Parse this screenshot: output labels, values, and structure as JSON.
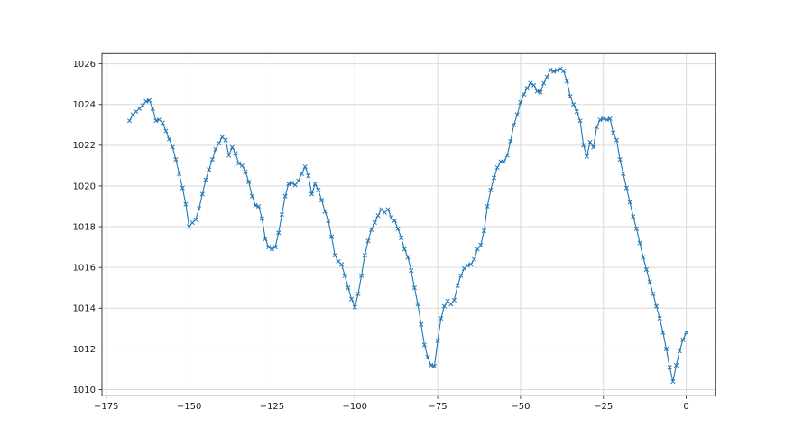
{
  "figure": {
    "background_color": "#ffffff",
    "title": ""
  },
  "chart_data": {
    "type": "line",
    "title": "",
    "xlabel": "",
    "ylabel": "",
    "grid": true,
    "legend": "none",
    "line_color": "#1f77b4",
    "marker": "x",
    "grid_color": "#d9d9d9",
    "spine_color": "#3a3a3a",
    "tick_label_color": "#1a1a1a",
    "xlim": [
      -176.3,
      8.75
    ],
    "ylim": [
      1009.7,
      1026.5
    ],
    "xticks": [
      -175,
      -150,
      -125,
      -100,
      -75,
      -50,
      -25,
      0
    ],
    "xtick_labels": [
      "−175",
      "−150",
      "−125",
      "−100",
      "−75",
      "−50",
      "−25",
      "0"
    ],
    "yticks": [
      1010,
      1012,
      1014,
      1016,
      1018,
      1020,
      1022,
      1024,
      1026
    ],
    "ytick_labels": [
      "1010",
      "1012",
      "1014",
      "1016",
      "1018",
      "1020",
      "1022",
      "1024",
      "1026"
    ],
    "x": [
      -168,
      -167,
      -166,
      -165,
      -164,
      -163,
      -162,
      -161,
      -160,
      -159,
      -158,
      -157,
      -156,
      -155,
      -154,
      -153,
      -152,
      -151,
      -150,
      -149,
      -148,
      -147,
      -146,
      -145,
      -144,
      -143,
      -142,
      -141,
      -140,
      -139,
      -138,
      -137,
      -136,
      -135,
      -134,
      -133,
      -132,
      -131,
      -130,
      -129,
      -128,
      -127,
      -126,
      -125,
      -124,
      -123,
      -122,
      -121,
      -120,
      -119,
      -118,
      -117,
      -116,
      -115,
      -114,
      -113,
      -112,
      -111,
      -110,
      -109,
      -108,
      -107,
      -106,
      -105,
      -104,
      -103,
      -102,
      -101,
      -100,
      -99,
      -98,
      -97,
      -96,
      -95,
      -94,
      -93,
      -92,
      -91,
      -90,
      -89,
      -88,
      -87,
      -86,
      -85,
      -84,
      -83,
      -82,
      -81,
      -80,
      -79,
      -78,
      -77,
      -76,
      -75,
      -74,
      -73,
      -72,
      -71,
      -70,
      -69,
      -68,
      -67,
      -66,
      -65,
      -64,
      -63,
      -62,
      -61,
      -60,
      -59,
      -58,
      -57,
      -56,
      -55,
      -54,
      -53,
      -52,
      -51,
      -50,
      -49,
      -48,
      -47,
      -46,
      -45,
      -44,
      -43,
      -42,
      -41,
      -40,
      -39,
      -38,
      -37,
      -36,
      -35,
      -34,
      -33,
      -32,
      -31,
      -30,
      -29,
      -28,
      -27,
      -26,
      -25,
      -24,
      -23,
      -22,
      -21,
      -20,
      -19,
      -18,
      -17,
      -16,
      -15,
      -14,
      -13,
      -12,
      -11,
      -10,
      -9,
      -8,
      -7,
      -6,
      -5,
      -4,
      -3,
      -2,
      -1,
      0
    ],
    "y": [
      1023.2,
      1023.5,
      1023.65,
      1023.8,
      1023.95,
      1024.15,
      1024.2,
      1023.8,
      1023.2,
      1023.25,
      1023.1,
      1022.7,
      1022.3,
      1021.9,
      1021.3,
      1020.6,
      1019.9,
      1019.1,
      1018.0,
      1018.2,
      1018.35,
      1018.9,
      1019.6,
      1020.3,
      1020.8,
      1021.3,
      1021.8,
      1022.1,
      1022.4,
      1022.25,
      1021.5,
      1021.9,
      1021.6,
      1021.1,
      1021.0,
      1020.7,
      1020.2,
      1019.5,
      1019.05,
      1019.0,
      1018.4,
      1017.4,
      1017.0,
      1016.9,
      1017.0,
      1017.7,
      1018.6,
      1019.5,
      1020.1,
      1020.15,
      1020.05,
      1020.25,
      1020.6,
      1020.95,
      1020.5,
      1019.6,
      1020.1,
      1019.8,
      1019.3,
      1018.75,
      1018.3,
      1017.5,
      1016.6,
      1016.3,
      1016.15,
      1015.6,
      1015.0,
      1014.45,
      1014.05,
      1014.7,
      1015.6,
      1016.6,
      1017.3,
      1017.85,
      1018.2,
      1018.55,
      1018.85,
      1018.7,
      1018.85,
      1018.45,
      1018.3,
      1017.9,
      1017.45,
      1016.9,
      1016.5,
      1015.85,
      1015.0,
      1014.2,
      1013.2,
      1012.2,
      1011.6,
      1011.2,
      1011.15,
      1012.4,
      1013.5,
      1014.1,
      1014.35,
      1014.2,
      1014.4,
      1015.1,
      1015.6,
      1015.95,
      1016.1,
      1016.15,
      1016.4,
      1016.9,
      1017.1,
      1017.8,
      1019.0,
      1019.8,
      1020.4,
      1020.9,
      1021.2,
      1021.2,
      1021.5,
      1022.2,
      1023.0,
      1023.5,
      1024.1,
      1024.5,
      1024.8,
      1025.05,
      1024.95,
      1024.65,
      1024.6,
      1025.05,
      1025.35,
      1025.7,
      1025.62,
      1025.68,
      1025.75,
      1025.65,
      1025.15,
      1024.4,
      1024.0,
      1023.65,
      1023.2,
      1022.0,
      1021.45,
      1022.15,
      1021.9,
      1022.9,
      1023.25,
      1023.3,
      1023.25,
      1023.3,
      1022.6,
      1022.25,
      1021.3,
      1020.6,
      1019.9,
      1019.2,
      1018.5,
      1017.9,
      1017.2,
      1016.5,
      1015.9,
      1015.3,
      1014.7,
      1014.1,
      1013.5,
      1012.8,
      1012.0,
      1011.1,
      1010.4,
      1011.2,
      1011.9,
      1012.45,
      1012.8
    ]
  }
}
